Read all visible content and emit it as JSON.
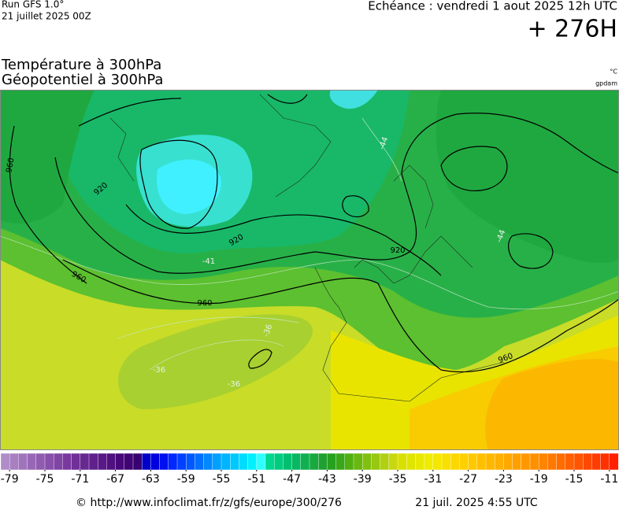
{
  "header": {
    "run": "Run GFS 1.0°",
    "run_date": "21 juillet 2025 00Z",
    "valid": "Echéance : vendredi 1 aout 2025 12h UTC",
    "lead": "+ 276H",
    "title_temp": "Température à 300hPa",
    "title_geo": "Géopotentiel à 300hPa",
    "unit_temp": "°C",
    "unit_geo": "gpdam"
  },
  "map": {
    "geopotential_labels": [
      "960",
      "920",
      "920",
      "920",
      "960",
      "960",
      "960"
    ],
    "temperature_labels": [
      "-44",
      "-44",
      "-41",
      "-36",
      "-36",
      "-36"
    ]
  },
  "colorbar": {
    "range": [
      -80,
      -10
    ],
    "ticks": [
      -79,
      -75,
      -71,
      -67,
      -63,
      -59,
      -55,
      -51,
      -47,
      -43,
      -39,
      -35,
      -31,
      -27,
      -23,
      -19,
      -15,
      -11
    ],
    "colors": [
      "#b08cc8",
      "#a880c2",
      "#a074bc",
      "#9868b6",
      "#905cb0",
      "#8850aa",
      "#8044a4",
      "#78389e",
      "#703098",
      "#682892",
      "#60208c",
      "#581886",
      "#501080",
      "#48087a",
      "#400474",
      "#380070",
      "#0000c8",
      "#0000e0",
      "#0010f0",
      "#0028ff",
      "#0040ff",
      "#0058ff",
      "#0070ff",
      "#0088ff",
      "#00a0ff",
      "#00b4ff",
      "#00c8ff",
      "#00dcff",
      "#00f0ff",
      "#30ffff",
      "#00d890",
      "#00cc80",
      "#00c070",
      "#08b860",
      "#10b050",
      "#18a840",
      "#20a030",
      "#28a020",
      "#38a818",
      "#50b010",
      "#68b810",
      "#80c010",
      "#98c810",
      "#b0d010",
      "#c8d810",
      "#d8e000",
      "#e0e400",
      "#e8e800",
      "#f0ec00",
      "#f4e800",
      "#f8e000",
      "#fcd800",
      "#ffd000",
      "#ffc800",
      "#ffc000",
      "#ffb800",
      "#ffb000",
      "#ffa800",
      "#ffa000",
      "#ff9800",
      "#ff9000",
      "#ff8400",
      "#ff7800",
      "#ff6c00",
      "#ff6000",
      "#ff5400",
      "#ff4800",
      "#ff3c00",
      "#ff3000",
      "#ff2000"
    ]
  },
  "footer": {
    "source": "© http://www.infoclimat.fr/z/gfs/europe/300/276",
    "generated": "21 juil. 2025  4:55 UTC"
  }
}
